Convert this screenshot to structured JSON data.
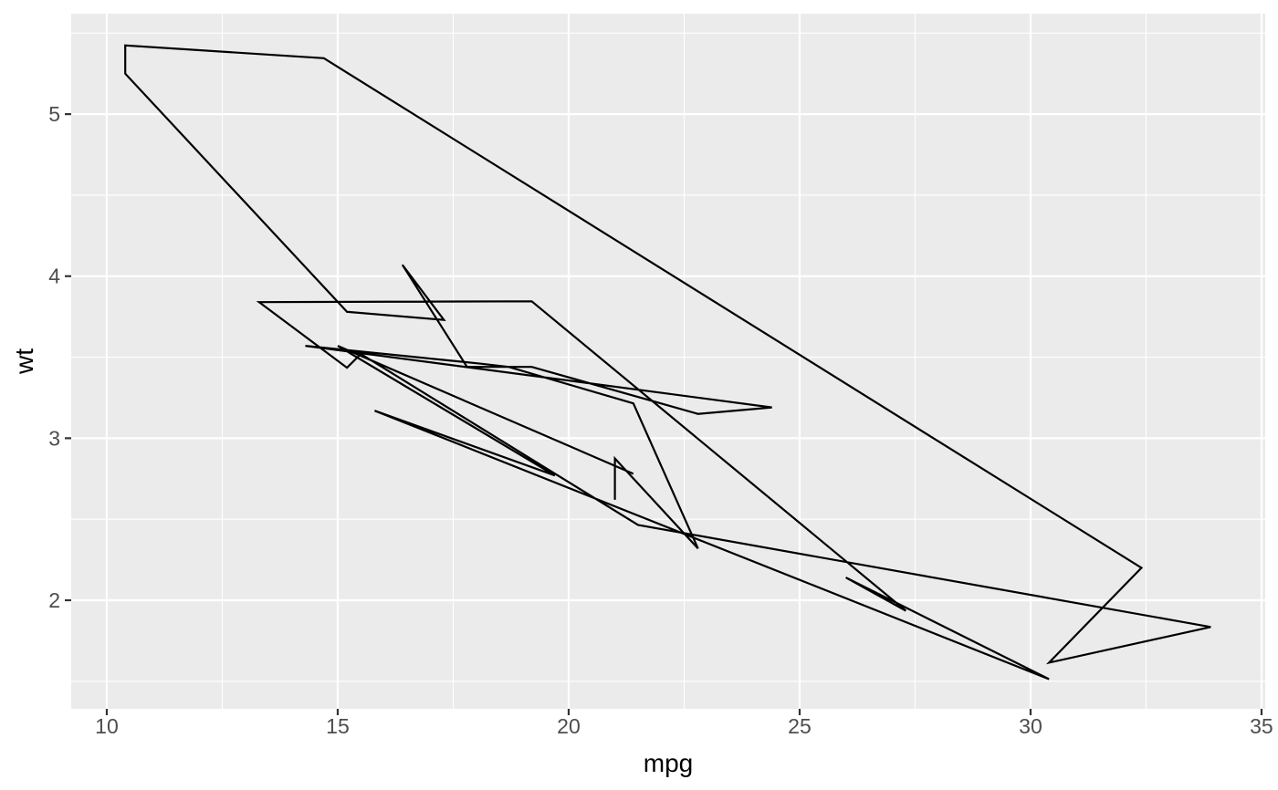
{
  "figure": {
    "background": "#FFFFFF"
  },
  "chart_data": {
    "type": "line",
    "subtype": "path-in-data-order",
    "title": "",
    "xlabel": "mpg",
    "ylabel": "wt",
    "legend": "none",
    "grid": true,
    "x": [
      21.0,
      21.0,
      22.8,
      21.4,
      18.7,
      18.1,
      14.3,
      24.4,
      22.8,
      19.2,
      17.8,
      16.4,
      17.3,
      15.2,
      10.4,
      10.4,
      14.7,
      32.4,
      30.4,
      33.9,
      21.5,
      15.5,
      15.2,
      13.3,
      19.2,
      27.3,
      26.0,
      30.4,
      15.8,
      19.7,
      15.0,
      21.4
    ],
    "y": [
      2.62,
      2.875,
      2.32,
      3.215,
      3.44,
      3.46,
      3.57,
      3.19,
      3.15,
      3.44,
      3.44,
      4.07,
      3.73,
      3.78,
      5.25,
      5.424,
      5.345,
      2.2,
      1.615,
      1.835,
      2.465,
      3.52,
      3.435,
      3.84,
      3.845,
      1.935,
      2.14,
      1.513,
      3.17,
      2.77,
      3.57,
      2.78
    ],
    "xlim": [
      9.23,
      35.08
    ],
    "ylim": [
      1.33,
      5.62
    ],
    "x_ticks": [
      10,
      15,
      20,
      25,
      30,
      35
    ],
    "y_ticks": [
      2,
      3,
      4,
      5
    ],
    "x_minor_ticks": [
      12.5,
      17.5,
      22.5,
      27.5,
      32.5
    ],
    "y_minor_ticks": [
      1.5,
      2.5,
      3.5,
      4.5,
      5.5
    ],
    "colors": {
      "panel_background": "#EBEBEB",
      "grid_major": "#FFFFFF",
      "grid_minor": "#FFFFFF",
      "line": "#000000",
      "tick_mark": "#333333",
      "tick_label": "#4D4D4D",
      "axis_title": "#000000"
    }
  }
}
